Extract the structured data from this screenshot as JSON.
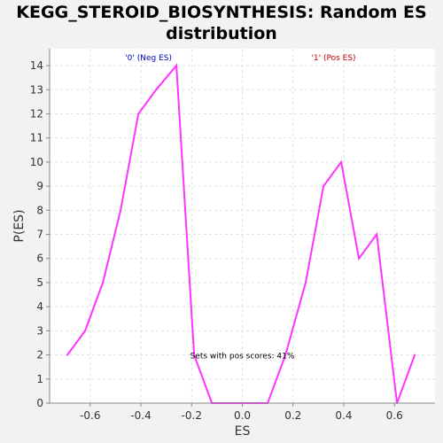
{
  "chart_data": {
    "type": "line",
    "title": "KEGG_STEROID_BIOSYNTHESIS: Random ES\ndistribution",
    "xlabel": "ES",
    "ylabel": "P(ES)",
    "xlim": [
      -0.76,
      0.76
    ],
    "ylim": [
      0,
      14.7
    ],
    "x_ticks": [
      -0.6,
      -0.4,
      -0.2,
      0.0,
      0.2,
      0.4,
      0.6
    ],
    "x_tick_labels": [
      "-0.6",
      "-0.4",
      "-0.2",
      "0.0",
      "0.2",
      "0.4",
      "0.6"
    ],
    "y_ticks": [
      0,
      1,
      2,
      3,
      4,
      5,
      6,
      7,
      8,
      9,
      10,
      11,
      12,
      13,
      14
    ],
    "y_tick_labels": [
      "0",
      "1",
      "2",
      "3",
      "4",
      "5",
      "6",
      "7",
      "8",
      "9",
      "10",
      "11",
      "12",
      "13",
      "14"
    ],
    "grid": true,
    "series": [
      {
        "color": "#ff33ff",
        "x": [
          -0.69,
          -0.62,
          -0.55,
          -0.48,
          -0.41,
          -0.34,
          -0.26,
          -0.19,
          -0.12,
          -0.05,
          0.03,
          0.1,
          0.17,
          0.25,
          0.32,
          0.39,
          0.46,
          0.53,
          0.61,
          0.68
        ],
        "y": [
          2,
          3,
          5,
          8,
          12,
          13,
          14,
          2,
          0,
          0,
          0,
          0,
          2,
          5,
          9,
          10,
          6,
          7,
          0,
          2
        ]
      }
    ],
    "region_labels": [
      {
        "text": "'0' (Neg ES)",
        "x": -0.37,
        "color": "#0000cc"
      },
      {
        "text": "'1' (Pos ES)",
        "x": 0.36,
        "color": "#cc0000"
      }
    ],
    "annotation": {
      "text": "Sets with pos scores: 41%",
      "x": 0.0,
      "y": 2
    }
  }
}
